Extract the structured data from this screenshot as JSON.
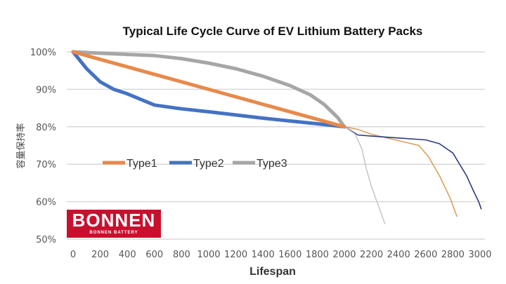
{
  "chart_data": {
    "type": "line",
    "title": "Typical Life Cycle Curve of EV Lithium Battery Packs",
    "xlabel": "Lifespan",
    "ylabel": "容量保持率",
    "xlim": [
      0,
      3000
    ],
    "ylim": [
      50,
      100
    ],
    "x_ticks": [
      "0",
      "200",
      "400",
      "600",
      "800",
      "1000",
      "1200",
      "1400",
      "1600",
      "1800",
      "2000",
      "2200",
      "2400",
      "2600",
      "2800",
      "3000"
    ],
    "y_ticks": [
      "50%",
      "60%",
      "70%",
      "80%",
      "90%",
      "100%"
    ],
    "grid": true,
    "legend_position": "middle-left",
    "series": [
      {
        "name": "Type1",
        "color": "#e8894a",
        "x": [
          0,
          2000
        ],
        "y": [
          100,
          80
        ]
      },
      {
        "name": "Type2",
        "color": "#4472c4",
        "x": [
          0,
          100,
          200,
          300,
          400,
          600,
          800,
          1000,
          1400,
          1800,
          2000
        ],
        "y": [
          100,
          95.5,
          92,
          90,
          88.8,
          85.8,
          84.8,
          84,
          82.3,
          80.8,
          80
        ]
      },
      {
        "name": "Type3",
        "color": "#a6a6a6",
        "x": [
          0,
          300,
          600,
          800,
          1000,
          1200,
          1400,
          1600,
          1750,
          1850,
          1950,
          2000
        ],
        "y": [
          100,
          99.5,
          99,
          98.2,
          97,
          95.5,
          93.5,
          91,
          88.5,
          86,
          82.5,
          80
        ]
      }
    ],
    "extension_curves": [
      {
        "color": "#d9a05b",
        "x": [
          2000,
          2100,
          2200,
          2400,
          2550,
          2620,
          2700,
          2780,
          2830
        ],
        "y": [
          80,
          79.3,
          78,
          76.3,
          75,
          72,
          67,
          61,
          56
        ]
      },
      {
        "color": "#2e3a7a",
        "x": [
          2000,
          2100,
          2200,
          2400,
          2600,
          2700,
          2800,
          2900,
          2950,
          2990,
          3010
        ],
        "y": [
          80,
          77.8,
          77.5,
          77,
          76.5,
          75.5,
          73,
          67,
          63,
          60,
          58
        ]
      },
      {
        "color": "#c8c8c8",
        "x": [
          2000,
          2080,
          2130,
          2160,
          2200,
          2250,
          2300
        ],
        "y": [
          80,
          78,
          74,
          69,
          64,
          59,
          54
        ]
      }
    ]
  },
  "logo": {
    "text": "BONNEN",
    "subtext": "BONNEN BATTERY"
  }
}
